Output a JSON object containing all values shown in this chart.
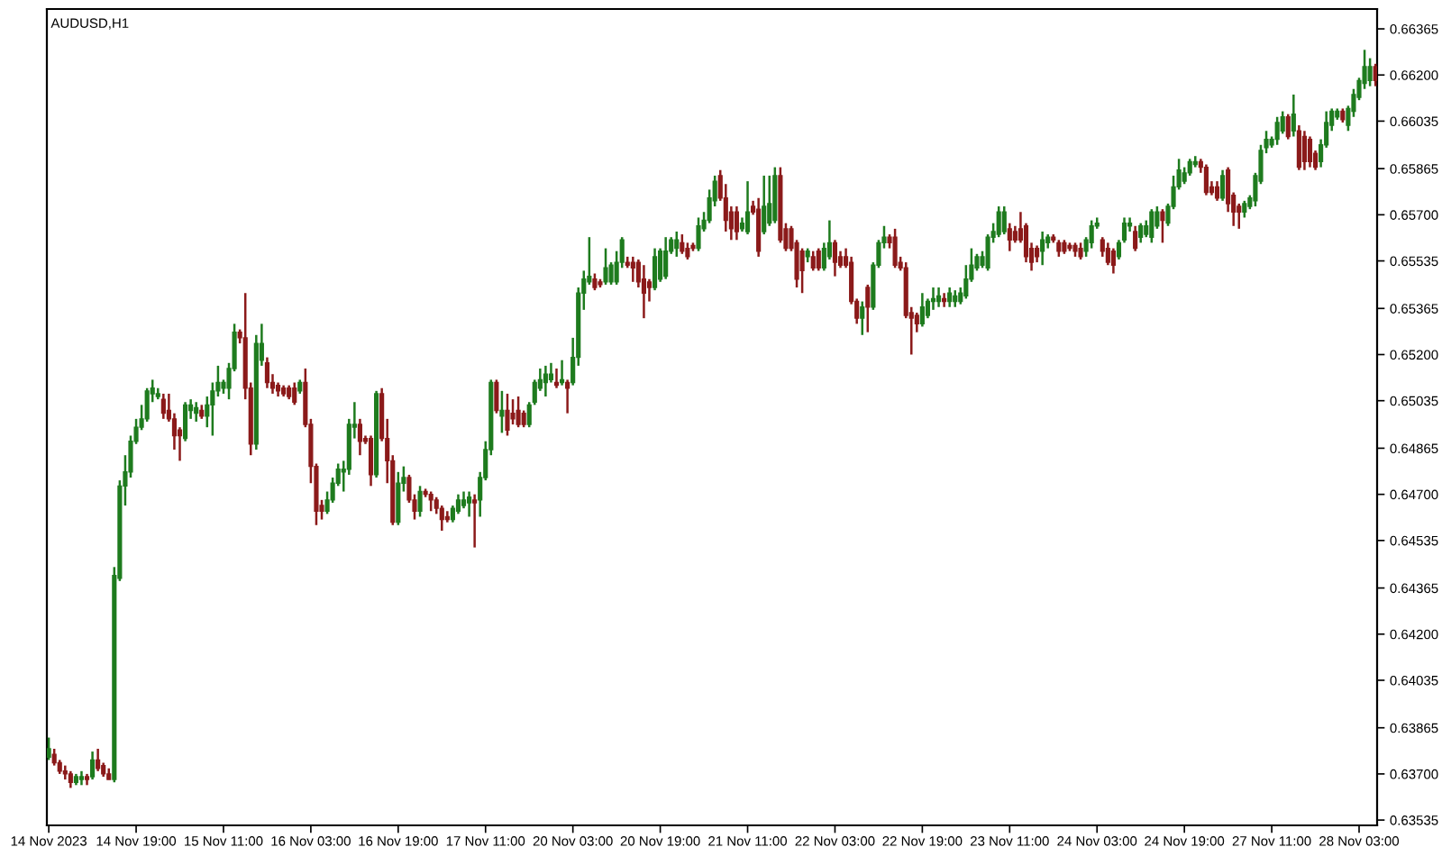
{
  "chart_data": {
    "type": "candlestick",
    "title": "AUDUSD,H1",
    "categories": [
      "14 Nov 2023",
      null,
      null,
      null,
      null,
      null,
      null,
      null,
      null,
      null,
      null,
      null,
      null,
      null,
      null,
      null,
      "14 Nov 19:00",
      null,
      null,
      null,
      null,
      null,
      null,
      null,
      null,
      null,
      null,
      null,
      null,
      null,
      null,
      null,
      "15 Nov 11:00",
      null,
      null,
      null,
      null,
      null,
      null,
      null,
      null,
      null,
      null,
      null,
      null,
      null,
      null,
      null,
      "16 Nov 03:00",
      null,
      null,
      null,
      null,
      null,
      null,
      null,
      null,
      null,
      null,
      null,
      null,
      null,
      null,
      null,
      "16 Nov 19:00",
      null,
      null,
      null,
      null,
      null,
      null,
      null,
      null,
      null,
      null,
      null,
      null,
      null,
      null,
      null,
      "17 Nov 11:00",
      null,
      null,
      null,
      null,
      null,
      null,
      null,
      null,
      null,
      null,
      null,
      null,
      null,
      null,
      null,
      "20 Nov 03:00",
      null,
      null,
      null,
      null,
      null,
      null,
      null,
      null,
      null,
      null,
      null,
      null,
      null,
      null,
      null,
      "20 Nov 19:00",
      null,
      null,
      null,
      null,
      null,
      null,
      null,
      null,
      null,
      null,
      null,
      null,
      null,
      null,
      null,
      "21 Nov 11:00",
      null,
      null,
      null,
      null,
      null,
      null,
      null,
      null,
      null,
      null,
      null,
      null,
      null,
      null,
      null,
      "22 Nov 03:00",
      null,
      null,
      null,
      null,
      null,
      null,
      null,
      null,
      null,
      null,
      null,
      null,
      null,
      null,
      null,
      "22 Nov 19:00",
      null,
      null,
      null,
      null,
      null,
      null,
      null,
      null,
      null,
      null,
      null,
      null,
      null,
      null,
      null,
      "23 Nov 11:00",
      null,
      null,
      null,
      null,
      null,
      null,
      null,
      null,
      null,
      null,
      null,
      null,
      null,
      null,
      null,
      "24 Nov 03:00",
      null,
      null,
      null,
      null,
      null,
      null,
      null,
      null,
      null,
      null,
      null,
      null,
      null,
      null,
      null,
      "24 Nov 19:00",
      null,
      null,
      null,
      null,
      null,
      null,
      null,
      null,
      null,
      null,
      null,
      null,
      null,
      null,
      null,
      "27 Nov 11:00",
      null,
      null,
      null,
      null,
      null,
      null,
      null,
      null,
      null,
      null,
      null,
      null,
      null,
      null,
      null,
      "28 Nov 03:00",
      null,
      null,
      null
    ],
    "ohlc": [
      [
        0.6376,
        0.6383,
        0.6375,
        0.6379
      ],
      [
        0.6377,
        0.6379,
        0.6373,
        0.6374
      ],
      [
        0.6374,
        0.6375,
        0.637,
        0.6371
      ],
      [
        0.6371,
        0.6373,
        0.6368,
        0.637
      ],
      [
        0.637,
        0.6371,
        0.6365,
        0.6367
      ],
      [
        0.6367,
        0.637,
        0.6366,
        0.6369
      ],
      [
        0.6368,
        0.6371,
        0.6366,
        0.6369
      ],
      [
        0.6369,
        0.637,
        0.6366,
        0.6368
      ],
      [
        0.6369,
        0.6378,
        0.6368,
        0.6375
      ],
      [
        0.6375,
        0.6379,
        0.6371,
        0.6372
      ],
      [
        0.6373,
        0.6374,
        0.6369,
        0.637
      ],
      [
        0.637,
        0.6372,
        0.6368,
        0.6368
      ],
      [
        0.6368,
        0.6444,
        0.6367,
        0.6441
      ],
      [
        0.644,
        0.6475,
        0.6439,
        0.6473
      ],
      [
        0.6473,
        0.6484,
        0.6466,
        0.6478
      ],
      [
        0.6478,
        0.6491,
        0.6476,
        0.6489
      ],
      [
        0.6489,
        0.6497,
        0.6488,
        0.6494
      ],
      [
        0.6494,
        0.6502,
        0.6493,
        0.6497
      ],
      [
        0.6497,
        0.6508,
        0.6496,
        0.6507
      ],
      [
        0.6506,
        0.6511,
        0.6503,
        0.6508
      ],
      [
        0.6505,
        0.6508,
        0.6504,
        0.6506
      ],
      [
        0.6504,
        0.6506,
        0.6497,
        0.6499
      ],
      [
        0.65,
        0.6506,
        0.6496,
        0.6497
      ],
      [
        0.6497,
        0.6499,
        0.6486,
        0.6491
      ],
      [
        0.6493,
        0.6494,
        0.6482,
        0.6491
      ],
      [
        0.649,
        0.6503,
        0.6489,
        0.6502
      ],
      [
        0.65,
        0.6504,
        0.6497,
        0.6502
      ],
      [
        0.6499,
        0.6503,
        0.6496,
        0.6501
      ],
      [
        0.65,
        0.6502,
        0.6497,
        0.6498
      ],
      [
        0.6498,
        0.6505,
        0.6494,
        0.6502
      ],
      [
        0.6502,
        0.651,
        0.6491,
        0.6507
      ],
      [
        0.6507,
        0.6516,
        0.6505,
        0.651
      ],
      [
        0.6508,
        0.6511,
        0.6506,
        0.651
      ],
      [
        0.6508,
        0.6517,
        0.6504,
        0.6515
      ],
      [
        0.6515,
        0.6531,
        0.6514,
        0.6528
      ],
      [
        0.6528,
        0.6529,
        0.6524,
        0.6526
      ],
      [
        0.6526,
        0.6542,
        0.6504,
        0.6508
      ],
      [
        0.6508,
        0.651,
        0.6484,
        0.6488
      ],
      [
        0.6488,
        0.6527,
        0.6486,
        0.6524
      ],
      [
        0.6518,
        0.6531,
        0.6516,
        0.6524
      ],
      [
        0.6517,
        0.6519,
        0.6508,
        0.651
      ],
      [
        0.651,
        0.6513,
        0.6506,
        0.6508
      ],
      [
        0.6509,
        0.651,
        0.6505,
        0.6507
      ],
      [
        0.6508,
        0.6509,
        0.6505,
        0.6506
      ],
      [
        0.6508,
        0.6509,
        0.6504,
        0.6505
      ],
      [
        0.6508,
        0.651,
        0.6502,
        0.6503
      ],
      [
        0.6507,
        0.6511,
        0.6506,
        0.651
      ],
      [
        0.651,
        0.6515,
        0.6494,
        0.6495
      ],
      [
        0.6495,
        0.6497,
        0.6474,
        0.648
      ],
      [
        0.648,
        0.6481,
        0.6459,
        0.6464
      ],
      [
        0.6466,
        0.6468,
        0.6461,
        0.6464
      ],
      [
        0.6464,
        0.6471,
        0.6463,
        0.6468
      ],
      [
        0.6468,
        0.6476,
        0.6467,
        0.6474
      ],
      [
        0.6474,
        0.6481,
        0.6473,
        0.6479
      ],
      [
        0.6478,
        0.6482,
        0.6471,
        0.6479
      ],
      [
        0.6479,
        0.6497,
        0.6477,
        0.6495
      ],
      [
        0.6494,
        0.6503,
        0.649,
        0.6495
      ],
      [
        0.6495,
        0.6497,
        0.6484,
        0.6489
      ],
      [
        0.649,
        0.6491,
        0.6488,
        0.6489
      ],
      [
        0.649,
        0.6491,
        0.6473,
        0.6477
      ],
      [
        0.6477,
        0.6507,
        0.6476,
        0.6506
      ],
      [
        0.6506,
        0.6508,
        0.6489,
        0.649
      ],
      [
        0.649,
        0.6497,
        0.6474,
        0.6482
      ],
      [
        0.6482,
        0.6484,
        0.6459,
        0.646
      ],
      [
        0.646,
        0.6478,
        0.6459,
        0.6474
      ],
      [
        0.6474,
        0.648,
        0.6471,
        0.6476
      ],
      [
        0.6476,
        0.6477,
        0.6467,
        0.6468
      ],
      [
        0.6468,
        0.647,
        0.6461,
        0.6464
      ],
      [
        0.6464,
        0.6473,
        0.6462,
        0.6471
      ],
      [
        0.6471,
        0.6472,
        0.6469,
        0.647
      ],
      [
        0.647,
        0.6471,
        0.6464,
        0.6468
      ],
      [
        0.6468,
        0.6469,
        0.6463,
        0.6465
      ],
      [
        0.6465,
        0.6466,
        0.6457,
        0.6461
      ],
      [
        0.6462,
        0.6464,
        0.646,
        0.6461
      ],
      [
        0.6461,
        0.6466,
        0.646,
        0.6465
      ],
      [
        0.6464,
        0.647,
        0.6463,
        0.6468
      ],
      [
        0.6466,
        0.6471,
        0.6465,
        0.6468
      ],
      [
        0.6467,
        0.6471,
        0.6462,
        0.6469
      ],
      [
        0.6468,
        0.647,
        0.6451,
        0.6467
      ],
      [
        0.6468,
        0.6478,
        0.6462,
        0.6476
      ],
      [
        0.6476,
        0.6489,
        0.6475,
        0.6486
      ],
      [
        0.6486,
        0.6511,
        0.6484,
        0.651
      ],
      [
        0.651,
        0.6511,
        0.6499,
        0.65
      ],
      [
        0.6498,
        0.6507,
        0.6492,
        0.65
      ],
      [
        0.65,
        0.6506,
        0.6491,
        0.6493
      ],
      [
        0.6499,
        0.6504,
        0.6495,
        0.6497
      ],
      [
        0.65,
        0.6505,
        0.6494,
        0.6495
      ],
      [
        0.6499,
        0.65,
        0.6494,
        0.6495
      ],
      [
        0.6495,
        0.6503,
        0.6494,
        0.6502
      ],
      [
        0.6503,
        0.6511,
        0.6502,
        0.651
      ],
      [
        0.6508,
        0.6515,
        0.6507,
        0.6511
      ],
      [
        0.651,
        0.6516,
        0.6505,
        0.6513
      ],
      [
        0.6511,
        0.6517,
        0.651,
        0.6513
      ],
      [
        0.651,
        0.6515,
        0.6508,
        0.6509
      ],
      [
        0.651,
        0.6518,
        0.6509,
        0.6511
      ],
      [
        0.651,
        0.6511,
        0.6499,
        0.6508
      ],
      [
        0.651,
        0.6526,
        0.6509,
        0.6519
      ],
      [
        0.6519,
        0.6544,
        0.6516,
        0.6542
      ],
      [
        0.6542,
        0.655,
        0.6536,
        0.6547
      ],
      [
        0.6546,
        0.6562,
        0.6545,
        0.6548
      ],
      [
        0.6547,
        0.6549,
        0.6543,
        0.6544
      ],
      [
        0.6546,
        0.6547,
        0.6544,
        0.6545
      ],
      [
        0.6546,
        0.6558,
        0.6545,
        0.6551
      ],
      [
        0.6546,
        0.6553,
        0.6545,
        0.6552
      ],
      [
        0.6546,
        0.6557,
        0.6545,
        0.6553
      ],
      [
        0.6553,
        0.6562,
        0.6551,
        0.6561
      ],
      [
        0.6553,
        0.6555,
        0.6551,
        0.6552
      ],
      [
        0.6553,
        0.6555,
        0.6546,
        0.6551
      ],
      [
        0.6553,
        0.6554,
        0.6544,
        0.6546
      ],
      [
        0.6547,
        0.6552,
        0.6533,
        0.6542
      ],
      [
        0.6546,
        0.6547,
        0.6539,
        0.6544
      ],
      [
        0.6544,
        0.6558,
        0.6543,
        0.6555
      ],
      [
        0.6547,
        0.6558,
        0.6546,
        0.6557
      ],
      [
        0.6548,
        0.6562,
        0.6547,
        0.6557
      ],
      [
        0.6557,
        0.6562,
        0.6556,
        0.6561
      ],
      [
        0.6558,
        0.6564,
        0.6555,
        0.6561
      ],
      [
        0.656,
        0.6563,
        0.6556,
        0.6557
      ],
      [
        0.6558,
        0.656,
        0.6554,
        0.6555
      ],
      [
        0.6559,
        0.656,
        0.6557,
        0.6558
      ],
      [
        0.6558,
        0.6569,
        0.6557,
        0.6566
      ],
      [
        0.6565,
        0.6571,
        0.6564,
        0.6568
      ],
      [
        0.6568,
        0.6579,
        0.6567,
        0.6576
      ],
      [
        0.6575,
        0.6584,
        0.6573,
        0.6582
      ],
      [
        0.6584,
        0.6586,
        0.6575,
        0.6576
      ],
      [
        0.6576,
        0.6581,
        0.6564,
        0.6568
      ],
      [
        0.6571,
        0.6573,
        0.6561,
        0.6565
      ],
      [
        0.6571,
        0.6573,
        0.6561,
        0.6564
      ],
      [
        0.6565,
        0.6569,
        0.6564,
        0.6567
      ],
      [
        0.6564,
        0.6582,
        0.6563,
        0.6571
      ],
      [
        0.6573,
        0.6575,
        0.657,
        0.6571
      ],
      [
        0.6572,
        0.6576,
        0.6555,
        0.6557
      ],
      [
        0.6564,
        0.6584,
        0.6563,
        0.6573
      ],
      [
        0.6567,
        0.6584,
        0.6566,
        0.6574
      ],
      [
        0.6568,
        0.6587,
        0.6567,
        0.6584
      ],
      [
        0.6584,
        0.6587,
        0.656,
        0.6561
      ],
      [
        0.6565,
        0.6567,
        0.6557,
        0.6558
      ],
      [
        0.6565,
        0.6566,
        0.6557,
        0.6558
      ],
      [
        0.656,
        0.6561,
        0.6544,
        0.6547
      ],
      [
        0.6557,
        0.6558,
        0.6542,
        0.655
      ],
      [
        0.6555,
        0.6558,
        0.6553,
        0.6557
      ],
      [
        0.6555,
        0.6557,
        0.655,
        0.6551
      ],
      [
        0.6557,
        0.6558,
        0.655,
        0.6551
      ],
      [
        0.6551,
        0.656,
        0.655,
        0.6558
      ],
      [
        0.6555,
        0.6568,
        0.6554,
        0.656
      ],
      [
        0.656,
        0.6561,
        0.6548,
        0.6553
      ],
      [
        0.6555,
        0.6557,
        0.6551,
        0.6552
      ],
      [
        0.6555,
        0.6558,
        0.6551,
        0.6552
      ],
      [
        0.6553,
        0.6555,
        0.6538,
        0.6539
      ],
      [
        0.6539,
        0.654,
        0.6531,
        0.6533
      ],
      [
        0.6533,
        0.6539,
        0.6527,
        0.6537
      ],
      [
        0.6544,
        0.6545,
        0.6528,
        0.6537
      ],
      [
        0.6537,
        0.6553,
        0.6536,
        0.6552
      ],
      [
        0.6552,
        0.6561,
        0.6551,
        0.656
      ],
      [
        0.656,
        0.6566,
        0.6558,
        0.6562
      ],
      [
        0.6562,
        0.6563,
        0.6558,
        0.656
      ],
      [
        0.6562,
        0.6565,
        0.6551,
        0.6552
      ],
      [
        0.6553,
        0.6555,
        0.655,
        0.6551
      ],
      [
        0.6551,
        0.6553,
        0.6533,
        0.6534
      ],
      [
        0.6535,
        0.6537,
        0.652,
        0.6533
      ],
      [
        0.6534,
        0.6535,
        0.6528,
        0.6531
      ],
      [
        0.6531,
        0.6542,
        0.653,
        0.6537
      ],
      [
        0.6534,
        0.654,
        0.6533,
        0.6539
      ],
      [
        0.6539,
        0.6544,
        0.6536,
        0.654
      ],
      [
        0.6539,
        0.6544,
        0.6537,
        0.6541
      ],
      [
        0.654,
        0.6542,
        0.6537,
        0.6539
      ],
      [
        0.6539,
        0.6544,
        0.6537,
        0.6542
      ],
      [
        0.6539,
        0.6543,
        0.6537,
        0.6541
      ],
      [
        0.6539,
        0.6544,
        0.6538,
        0.6542
      ],
      [
        0.6541,
        0.6552,
        0.654,
        0.6547
      ],
      [
        0.6547,
        0.6558,
        0.6546,
        0.6552
      ],
      [
        0.6551,
        0.6556,
        0.655,
        0.6555
      ],
      [
        0.6552,
        0.6557,
        0.6551,
        0.6555
      ],
      [
        0.6551,
        0.6563,
        0.655,
        0.6562
      ],
      [
        0.6562,
        0.6567,
        0.656,
        0.6564
      ],
      [
        0.6563,
        0.6573,
        0.6562,
        0.6571
      ],
      [
        0.6564,
        0.6573,
        0.6563,
        0.6571
      ],
      [
        0.6565,
        0.6567,
        0.6557,
        0.6561
      ],
      [
        0.6564,
        0.6566,
        0.656,
        0.6561
      ],
      [
        0.6565,
        0.6571,
        0.656,
        0.6561
      ],
      [
        0.6566,
        0.6567,
        0.6553,
        0.6555
      ],
      [
        0.6558,
        0.656,
        0.655,
        0.6553
      ],
      [
        0.6558,
        0.6559,
        0.6553,
        0.6555
      ],
      [
        0.6557,
        0.6564,
        0.6552,
        0.6561
      ],
      [
        0.656,
        0.6563,
        0.6558,
        0.6562
      ],
      [
        0.6562,
        0.6563,
        0.656,
        0.6561
      ],
      [
        0.656,
        0.6561,
        0.6555,
        0.6557
      ],
      [
        0.656,
        0.6561,
        0.6556,
        0.6557
      ],
      [
        0.6559,
        0.656,
        0.6557,
        0.6558
      ],
      [
        0.6559,
        0.656,
        0.6555,
        0.6557
      ],
      [
        0.6558,
        0.656,
        0.6554,
        0.6555
      ],
      [
        0.6557,
        0.6562,
        0.6555,
        0.6561
      ],
      [
        0.656,
        0.6568,
        0.6558,
        0.6566
      ],
      [
        0.6566,
        0.6569,
        0.6565,
        0.6567
      ],
      [
        0.6561,
        0.6562,
        0.6555,
        0.6557
      ],
      [
        0.6558,
        0.656,
        0.6552,
        0.6553
      ],
      [
        0.6557,
        0.6558,
        0.6549,
        0.6552
      ],
      [
        0.6555,
        0.6561,
        0.6554,
        0.656
      ],
      [
        0.6561,
        0.6569,
        0.656,
        0.6567
      ],
      [
        0.6566,
        0.6569,
        0.6564,
        0.6567
      ],
      [
        0.6564,
        0.6566,
        0.6557,
        0.6558
      ],
      [
        0.6562,
        0.6567,
        0.656,
        0.6566
      ],
      [
        0.6563,
        0.6568,
        0.6562,
        0.6566
      ],
      [
        0.6562,
        0.6572,
        0.656,
        0.6571
      ],
      [
        0.6566,
        0.6573,
        0.6565,
        0.6571
      ],
      [
        0.6571,
        0.6572,
        0.656,
        0.6568
      ],
      [
        0.6567,
        0.6574,
        0.6566,
        0.6573
      ],
      [
        0.6573,
        0.6584,
        0.6572,
        0.658
      ],
      [
        0.658,
        0.659,
        0.6579,
        0.6586
      ],
      [
        0.6582,
        0.6587,
        0.6581,
        0.6585
      ],
      [
        0.6585,
        0.659,
        0.6584,
        0.6589
      ],
      [
        0.6588,
        0.6591,
        0.6587,
        0.6589
      ],
      [
        0.6589,
        0.659,
        0.6585,
        0.6587
      ],
      [
        0.6587,
        0.6588,
        0.6577,
        0.6578
      ],
      [
        0.658,
        0.6582,
        0.6577,
        0.6578
      ],
      [
        0.658,
        0.6582,
        0.6575,
        0.6576
      ],
      [
        0.6576,
        0.6586,
        0.6575,
        0.6584
      ],
      [
        0.6586,
        0.6587,
        0.6571,
        0.6574
      ],
      [
        0.6577,
        0.6578,
        0.6566,
        0.6571
      ],
      [
        0.6573,
        0.6574,
        0.6565,
        0.6571
      ],
      [
        0.6571,
        0.6575,
        0.6569,
        0.6574
      ],
      [
        0.6573,
        0.6577,
        0.6572,
        0.6576
      ],
      [
        0.6575,
        0.6585,
        0.6573,
        0.6584
      ],
      [
        0.6582,
        0.6595,
        0.6581,
        0.6593
      ],
      [
        0.6594,
        0.66,
        0.6592,
        0.6597
      ],
      [
        0.6595,
        0.6598,
        0.6594,
        0.6597
      ],
      [
        0.6597,
        0.6605,
        0.6595,
        0.6603
      ],
      [
        0.66,
        0.6607,
        0.6599,
        0.6605
      ],
      [
        0.6605,
        0.6606,
        0.6597,
        0.6598
      ],
      [
        0.66,
        0.6613,
        0.6598,
        0.6606
      ],
      [
        0.66,
        0.6602,
        0.6586,
        0.6587
      ],
      [
        0.6598,
        0.66,
        0.6586,
        0.6589
      ],
      [
        0.6597,
        0.6598,
        0.6587,
        0.6589
      ],
      [
        0.6592,
        0.6593,
        0.6586,
        0.6587
      ],
      [
        0.6589,
        0.6597,
        0.6587,
        0.6595
      ],
      [
        0.6595,
        0.6607,
        0.6594,
        0.6603
      ],
      [
        0.6602,
        0.6608,
        0.66,
        0.6607
      ],
      [
        0.6605,
        0.6608,
        0.6604,
        0.6607
      ],
      [
        0.6607,
        0.6608,
        0.6603,
        0.6604
      ],
      [
        0.6602,
        0.6609,
        0.66,
        0.6608
      ],
      [
        0.6607,
        0.6615,
        0.6605,
        0.6613
      ],
      [
        0.6612,
        0.6619,
        0.6611,
        0.6618
      ],
      [
        0.6617,
        0.6629,
        0.6615,
        0.6623
      ],
      [
        0.6618,
        0.6626,
        0.6616,
        0.6623
      ],
      [
        0.6623,
        0.6624,
        0.6616,
        0.6618
      ]
    ],
    "colors": [
      "#1e7b1e",
      "#8b1a1a",
      "#8b1a1a",
      "#8b1a1a",
      "#8b1a1a",
      "#1e7b1e",
      "#1e7b1e",
      "#8b1a1a",
      "#1e7b1e",
      "#8b1a1a",
      "#8b1a1a",
      "#8b1a1a",
      "#1e7b1e",
      "#1e7b1e",
      "#1e7b1e",
      "#1e7b1e",
      "#1e7b1e",
      "#1e7b1e",
      "#1e7b1e",
      "#1e7b1e",
      "#1e7b1e",
      "#8b1a1a",
      "#8b1a1a",
      "#8b1a1a",
      "#8b1a1a",
      "#1e7b1e",
      "#1e7b1e",
      "#1e7b1e",
      "#8b1a1a",
      "#1e7b1e",
      "#1e7b1e",
      "#1e7b1e",
      "#1e7b1e",
      "#1e7b1e",
      "#1e7b1e",
      "#8b1a1a",
      "#8b1a1a",
      "#8b1a1a",
      "#1e7b1e",
      "#1e7b1e",
      "#8b1a1a",
      "#8b1a1a",
      "#8b1a1a",
      "#8b1a1a",
      "#8b1a1a",
      "#8b1a1a",
      "#1e7b1e",
      "#8b1a1a",
      "#8b1a1a",
      "#8b1a1a",
      "#8b1a1a",
      "#1e7b1e",
      "#1e7b1e",
      "#1e7b1e",
      "#1e7b1e",
      "#1e7b1e",
      "#1e7b1e",
      "#8b1a1a",
      "#8b1a1a",
      "#8b1a1a",
      "#1e7b1e",
      "#8b1a1a",
      "#8b1a1a",
      "#8b1a1a",
      "#1e7b1e",
      "#1e7b1e",
      "#8b1a1a",
      "#8b1a1a",
      "#1e7b1e",
      "#8b1a1a",
      "#8b1a1a",
      "#8b1a1a",
      "#8b1a1a",
      "#8b1a1a",
      "#1e7b1e",
      "#1e7b1e",
      "#1e7b1e",
      "#1e7b1e",
      "#8b1a1a",
      "#1e7b1e",
      "#1e7b1e",
      "#1e7b1e",
      "#8b1a1a",
      "#1e7b1e",
      "#8b1a1a",
      "#8b1a1a",
      "#8b1a1a",
      "#8b1a1a",
      "#1e7b1e",
      "#1e7b1e",
      "#1e7b1e",
      "#1e7b1e",
      "#1e7b1e",
      "#8b1a1a",
      "#1e7b1e",
      "#8b1a1a",
      "#1e7b1e",
      "#1e7b1e",
      "#1e7b1e",
      "#1e7b1e",
      "#8b1a1a",
      "#8b1a1a",
      "#1e7b1e",
      "#1e7b1e",
      "#1e7b1e",
      "#1e7b1e",
      "#8b1a1a",
      "#8b1a1a",
      "#8b1a1a",
      "#8b1a1a",
      "#8b1a1a",
      "#1e7b1e",
      "#1e7b1e",
      "#1e7b1e",
      "#1e7b1e",
      "#1e7b1e",
      "#8b1a1a",
      "#8b1a1a",
      "#8b1a1a",
      "#1e7b1e",
      "#1e7b1e",
      "#1e7b1e",
      "#1e7b1e",
      "#8b1a1a",
      "#8b1a1a",
      "#8b1a1a",
      "#8b1a1a",
      "#1e7b1e",
      "#1e7b1e",
      "#8b1a1a",
      "#8b1a1a",
      "#1e7b1e",
      "#1e7b1e",
      "#1e7b1e",
      "#8b1a1a",
      "#8b1a1a",
      "#8b1a1a",
      "#8b1a1a",
      "#8b1a1a",
      "#1e7b1e",
      "#8b1a1a",
      "#8b1a1a",
      "#1e7b1e",
      "#1e7b1e",
      "#8b1a1a",
      "#8b1a1a",
      "#8b1a1a",
      "#8b1a1a",
      "#8b1a1a",
      "#1e7b1e",
      "#8b1a1a",
      "#1e7b1e",
      "#1e7b1e",
      "#1e7b1e",
      "#8b1a1a",
      "#8b1a1a",
      "#8b1a1a",
      "#8b1a1a",
      "#8b1a1a",
      "#8b1a1a",
      "#1e7b1e",
      "#1e7b1e",
      "#1e7b1e",
      "#1e7b1e",
      "#8b1a1a",
      "#1e7b1e",
      "#1e7b1e",
      "#1e7b1e",
      "#1e7b1e",
      "#1e7b1e",
      "#1e7b1e",
      "#1e7b1e",
      "#1e7b1e",
      "#1e7b1e",
      "#1e7b1e",
      "#1e7b1e",
      "#8b1a1a",
      "#8b1a1a",
      "#8b1a1a",
      "#8b1a1a",
      "#8b1a1a",
      "#8b1a1a",
      "#1e7b1e",
      "#1e7b1e",
      "#8b1a1a",
      "#8b1a1a",
      "#8b1a1a",
      "#8b1a1a",
      "#8b1a1a",
      "#8b1a1a",
      "#1e7b1e",
      "#1e7b1e",
      "#1e7b1e",
      "#8b1a1a",
      "#8b1a1a",
      "#8b1a1a",
      "#1e7b1e",
      "#1e7b1e",
      "#1e7b1e",
      "#8b1a1a",
      "#1e7b1e",
      "#1e7b1e",
      "#1e7b1e",
      "#1e7b1e",
      "#8b1a1a",
      "#1e7b1e",
      "#1e7b1e",
      "#1e7b1e",
      "#1e7b1e",
      "#1e7b1e",
      "#1e7b1e",
      "#8b1a1a",
      "#8b1a1a",
      "#8b1a1a",
      "#8b1a1a",
      "#1e7b1e",
      "#8b1a1a",
      "#8b1a1a",
      "#8b1a1a",
      "#1e7b1e",
      "#1e7b1e",
      "#1e7b1e",
      "#1e7b1e",
      "#1e7b1e",
      "#1e7b1e",
      "#1e7b1e",
      "#1e7b1e",
      "#8b1a1a",
      "#1e7b1e",
      "#8b1a1a",
      "#8b1a1a",
      "#8b1a1a",
      "#8b1a1a",
      "#1e7b1e",
      "#1e7b1e",
      "#1e7b1e",
      "#1e7b1e",
      "#8b1a1a",
      "#1e7b1e",
      "#1e7b1e",
      "#1e7b1e",
      "#1e7b1e",
      "#1e7b1e",
      "#8b1a1a"
    ],
    "ylim": [
      0.63516,
      0.66436
    ],
    "yticks": [
      0.66365,
      {
        "value": 0.662,
        "label": "0.66200"
      },
      0.66035,
      0.65865,
      {
        "value": 0.657,
        "label": "0.65700"
      },
      0.65535,
      0.65365,
      {
        "value": 0.652,
        "label": "0.65200"
      },
      0.65035,
      0.64865,
      {
        "value": 0.647,
        "label": "0.64700"
      },
      0.64535,
      0.64365,
      {
        "value": 0.642,
        "label": "0.64200"
      },
      0.64035,
      0.63865,
      {
        "value": 0.637,
        "label": "0.63700"
      },
      0.63535
    ]
  }
}
